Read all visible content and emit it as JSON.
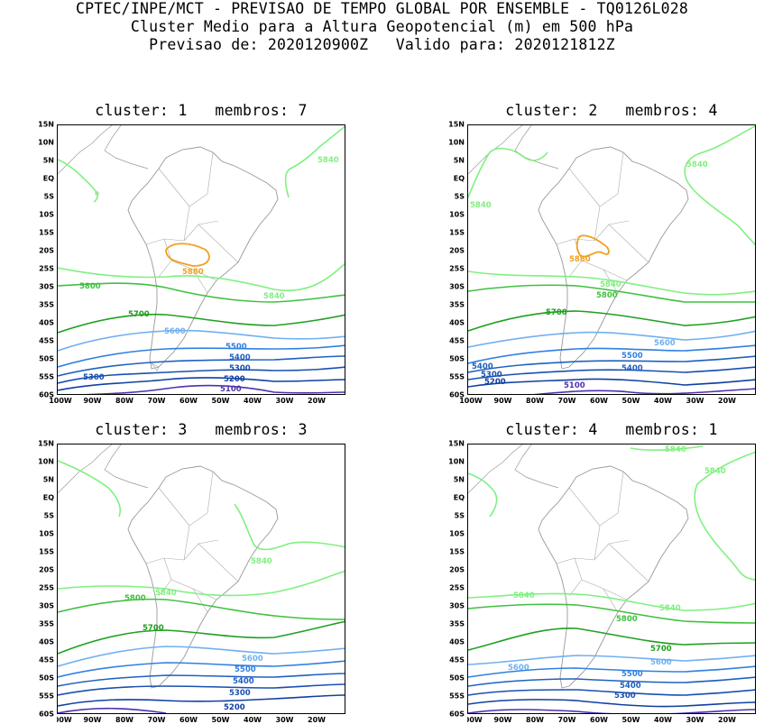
{
  "header": {
    "line1": "CPTEC/INPE/MCT - PREVISAO DE TEMPO GLOBAL POR ENSEMBLE - TQ0126L028",
    "line2": "Cluster Medio para a Altura Geopotencial (m) em 500 hPa",
    "line3": "Previsao de: 2020120900Z   Valido para: 2020121812Z"
  },
  "axes": {
    "lat_labels": [
      "15N",
      "10N",
      "5N",
      "EQ",
      "5S",
      "10S",
      "15S",
      "20S",
      "25S",
      "30S",
      "35S",
      "40S",
      "45S",
      "50S",
      "55S",
      "60S"
    ],
    "lon_labels": [
      "100W",
      "90W",
      "80W",
      "70W",
      "60W",
      "50W",
      "40W",
      "30W",
      "20W"
    ]
  },
  "colors": {
    "c5880": "#f0a020",
    "c5840": "#80f080",
    "c5800": "#40c040",
    "c5700": "#20a020",
    "c5600": "#70b0f0",
    "c5500": "#3080e0",
    "c5400": "#2060c0",
    "c5300": "#1850b0",
    "c5200": "#1040a0",
    "c5100": "#5030b0",
    "coast": "#999999"
  },
  "panels": [
    {
      "title": "cluster: 1   membros: 7",
      "labels": [
        "5840",
        "5880",
        "5800",
        "5840",
        "5700",
        "5600",
        "5500",
        "5400",
        "5300",
        "5300",
        "5200",
        "5100"
      ]
    },
    {
      "title": "cluster: 2   membros: 4",
      "labels": [
        "5840",
        "5840",
        "5880",
        "5840",
        "5800",
        "5700",
        "5600",
        "5500",
        "5400",
        "5400",
        "5300",
        "5200",
        "5100"
      ]
    },
    {
      "title": "cluster: 3   membros: 3",
      "labels": [
        "5840",
        "5800",
        "5840",
        "5700",
        "5600",
        "5500",
        "5400",
        "5300",
        "5200"
      ]
    },
    {
      "title": "cluster: 4   membros: 1",
      "labels": [
        "5840",
        "5840",
        "5840",
        "5840",
        "5800",
        "5700",
        "5600",
        "5600",
        "5500",
        "5400",
        "5300"
      ]
    }
  ]
}
